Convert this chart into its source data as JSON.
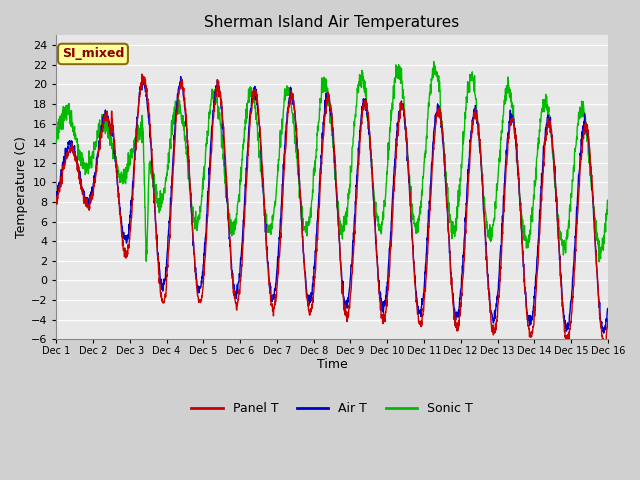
{
  "title": "Sherman Island Air Temperatures",
  "xlabel": "Time",
  "ylabel": "Temperature (C)",
  "ylim": [
    -6,
    25
  ],
  "yticks": [
    -6,
    -4,
    -2,
    0,
    2,
    4,
    6,
    8,
    10,
    12,
    14,
    16,
    18,
    20,
    22,
    24
  ],
  "xtick_labels": [
    "Dec 1",
    "Dec 2",
    "Dec 3",
    "Dec 4",
    "Dec 5",
    "Dec 6",
    "Dec 7",
    "Dec 8",
    "Dec 9",
    "Dec 10",
    "Dec 11",
    "Dec 12",
    "Dec 13",
    "Dec 14",
    "Dec 15",
    "Dec 16"
  ],
  "colors": {
    "panel_t": "#cc0000",
    "air_t": "#0000cc",
    "sonic_t": "#00bb00",
    "fig_bg": "#d0d0d0",
    "ax_bg": "#e8e8e8",
    "grid": "#ffffff"
  },
  "annotation": {
    "text": "SI_mixed",
    "fontsize": 9,
    "color": "#8b0000",
    "bg": "#ffff99",
    "border": "#8b6914"
  },
  "legend": {
    "panel_t": "Panel T",
    "air_t": "Air T",
    "sonic_t": "Sonic T"
  },
  "line_width": 1.0,
  "num_points": 2000
}
